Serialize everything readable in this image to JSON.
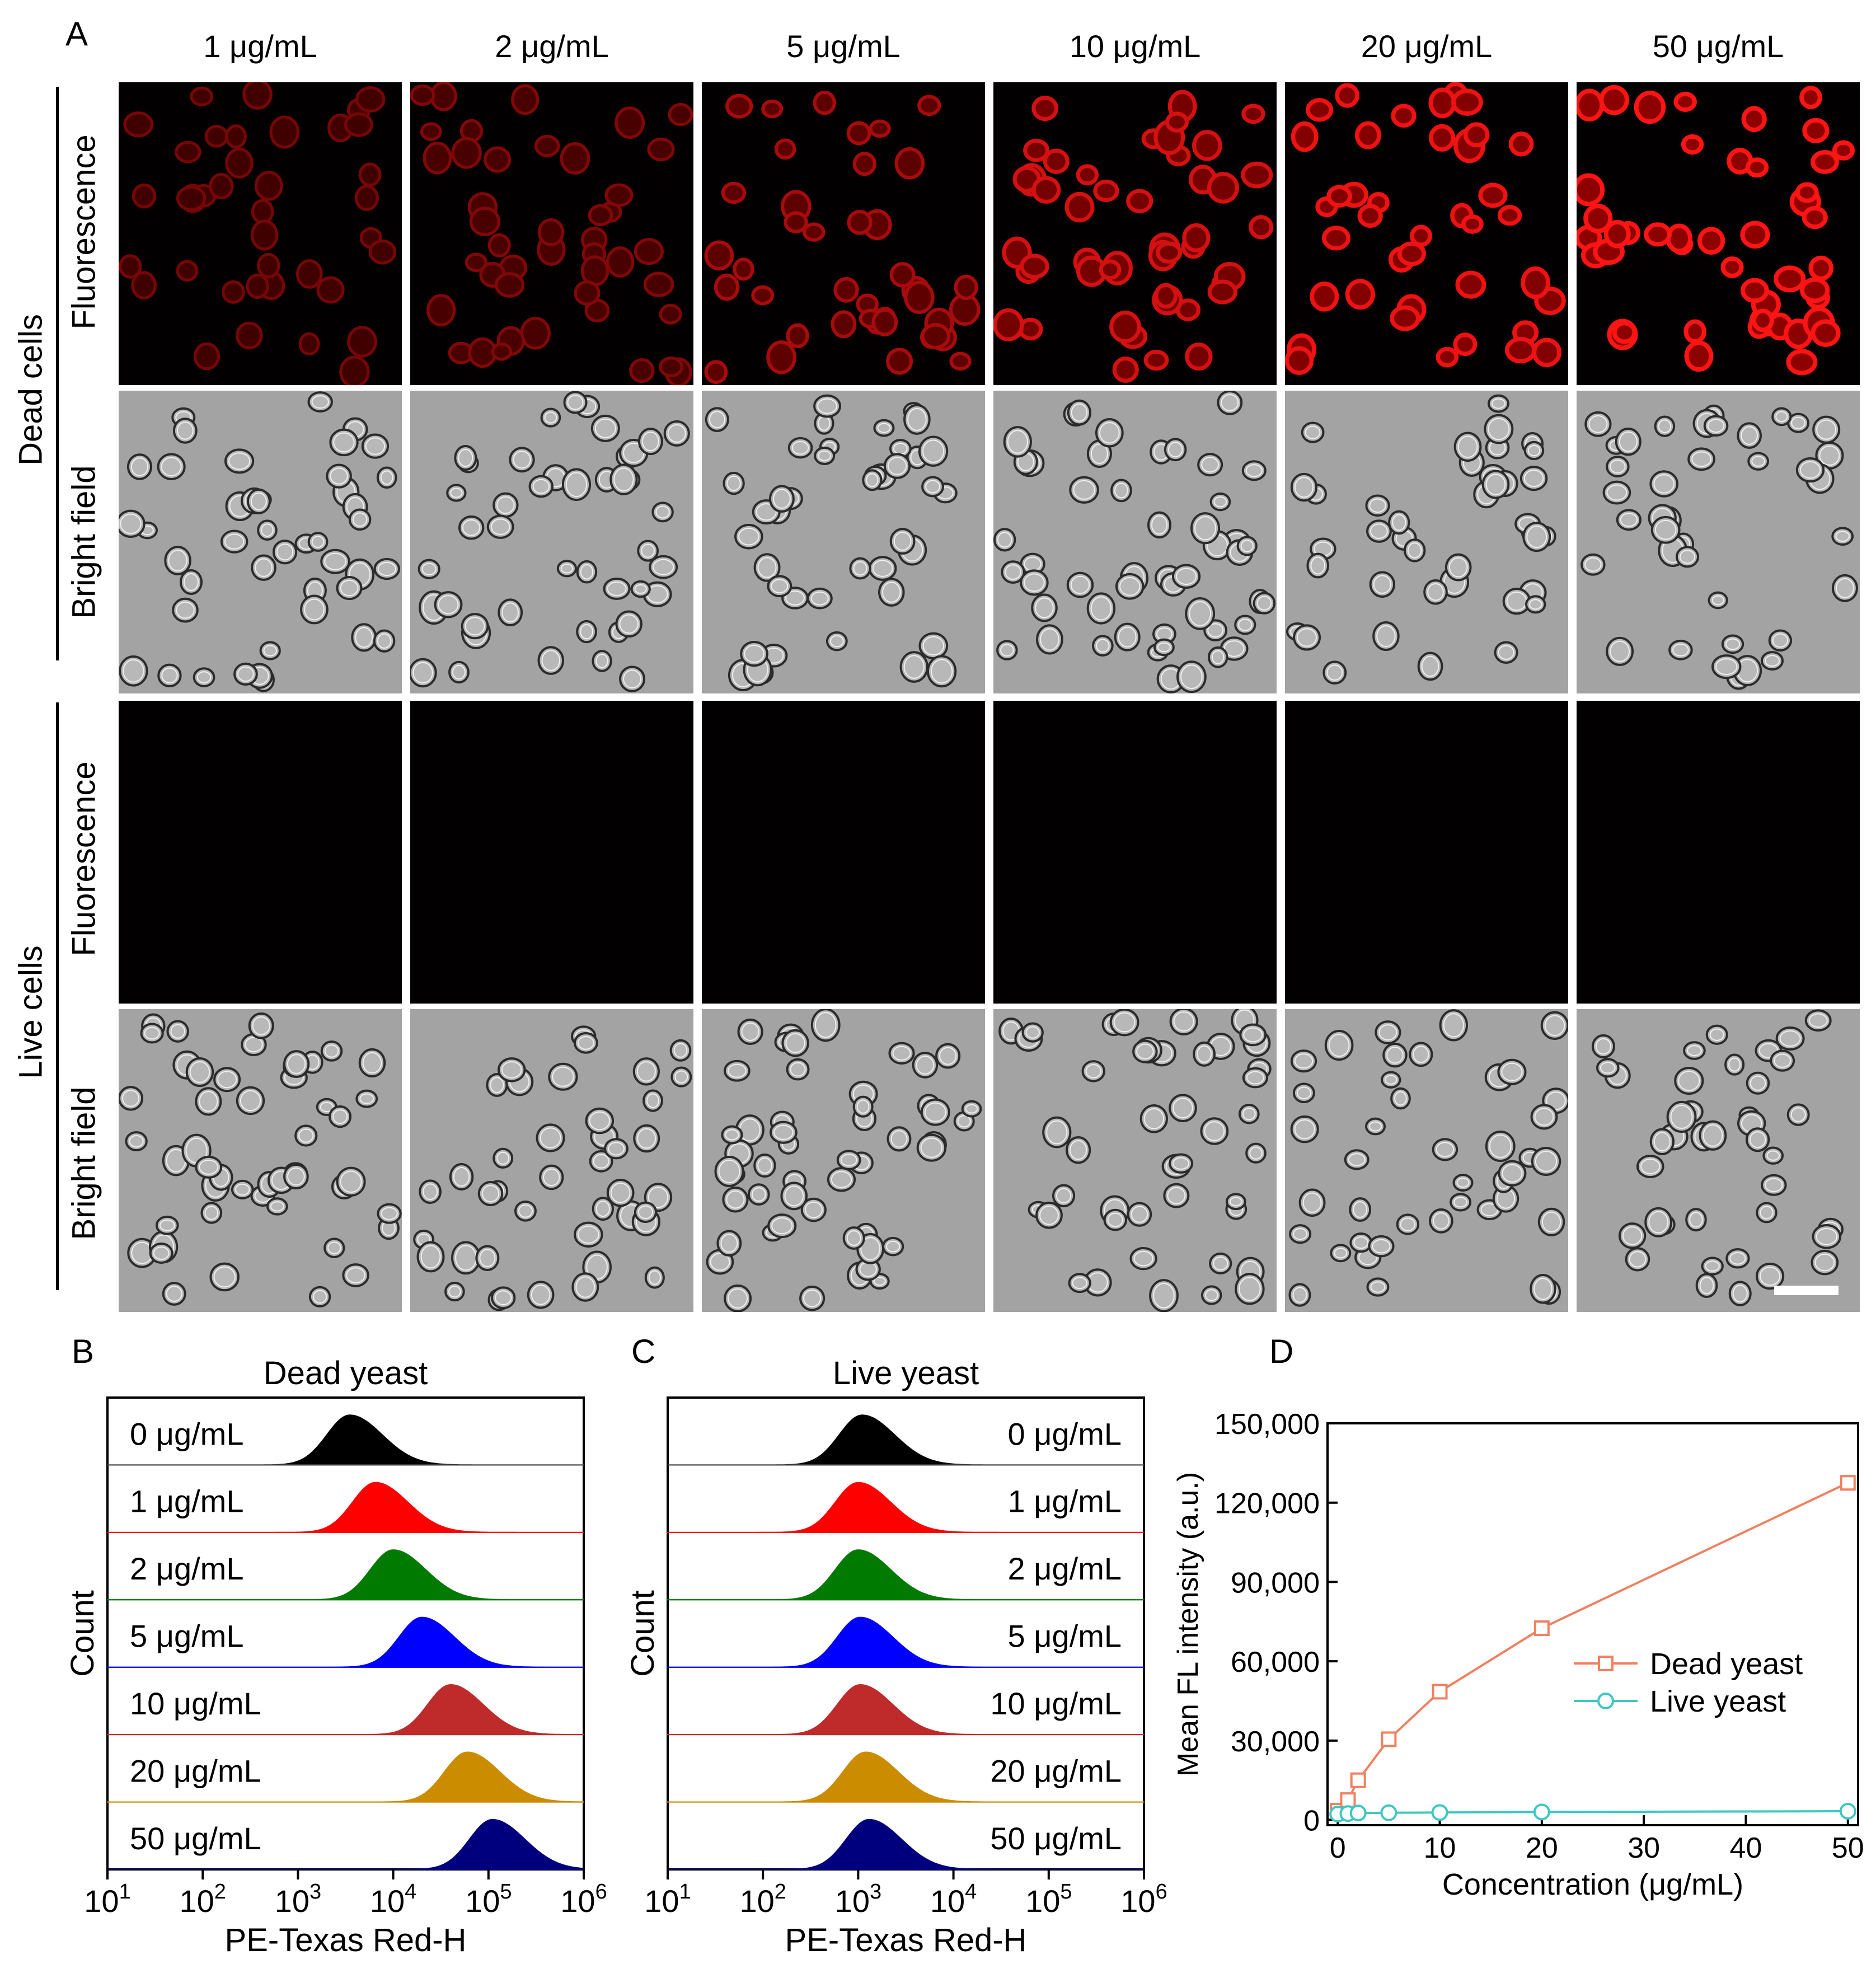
{
  "panel_labels": {
    "A": "A",
    "B": "B",
    "C": "C",
    "D": "D"
  },
  "microscopy": {
    "concentrations": [
      "1 μg/mL",
      "2 μg/mL",
      "5 μg/mL",
      "10 μg/mL",
      "20 μg/mL",
      "50 μg/mL"
    ],
    "groups": [
      {
        "label": "Dead cells",
        "rows": [
          {
            "label": "Fluorescence",
            "kind": "fluorescence",
            "intensity": [
              0.3,
              0.36,
              0.55,
              0.78,
              0.92,
              1.0
            ]
          },
          {
            "label": "Bright field",
            "kind": "bright"
          }
        ]
      },
      {
        "label": "Live cells",
        "rows": [
          {
            "label": "Fluorescence",
            "kind": "fluorescence",
            "intensity": [
              0,
              0,
              0,
              0,
              0,
              0
            ]
          },
          {
            "label": "Bright field",
            "kind": "bright"
          }
        ]
      }
    ]
  },
  "chart_data": [
    {
      "type": "area",
      "panel": "B",
      "title": "Dead yeast",
      "xlabel": "PE-Texas Red-H",
      "ylabel": "Count",
      "x_scale": "log",
      "xlim": [
        10,
        1000000
      ],
      "x_ticks": [
        {
          "base": "10",
          "exp": "1"
        },
        {
          "base": "10",
          "exp": "2"
        },
        {
          "base": "10",
          "exp": "3"
        },
        {
          "base": "10",
          "exp": "4"
        },
        {
          "base": "10",
          "exp": "5"
        },
        {
          "base": "10",
          "exp": "6"
        }
      ],
      "label_side": "left",
      "series": [
        {
          "name": "0 μg/mL",
          "peak": 3500,
          "color": "#000000"
        },
        {
          "name": "1 μg/mL",
          "peak": 6500,
          "color": "#ff0000"
        },
        {
          "name": "2 μg/mL",
          "peak": 10000,
          "color": "#007a00"
        },
        {
          "name": "5 μg/mL",
          "peak": 20000,
          "color": "#0000ff"
        },
        {
          "name": "10 μg/mL",
          "peak": 40000,
          "color": "#bf2b2b"
        },
        {
          "name": "20 μg/mL",
          "peak": 60000,
          "color": "#cc8c00"
        },
        {
          "name": "50 μg/mL",
          "peak": 110000,
          "color": "#00007f"
        }
      ]
    },
    {
      "type": "area",
      "panel": "C",
      "title": "Live yeast",
      "xlabel": "PE-Texas Red-H",
      "ylabel": "Count",
      "x_scale": "log",
      "xlim": [
        10,
        1000000
      ],
      "x_ticks": [
        {
          "base": "10",
          "exp": "1"
        },
        {
          "base": "10",
          "exp": "2"
        },
        {
          "base": "10",
          "exp": "3"
        },
        {
          "base": "10",
          "exp": "4"
        },
        {
          "base": "10",
          "exp": "5"
        },
        {
          "base": "10",
          "exp": "6"
        }
      ],
      "label_side": "right",
      "series": [
        {
          "name": "0 μg/mL",
          "peak": 1100,
          "color": "#000000"
        },
        {
          "name": "1 μg/mL",
          "peak": 1000,
          "color": "#ff0000"
        },
        {
          "name": "2 μg/mL",
          "peak": 1000,
          "color": "#007a00"
        },
        {
          "name": "5 μg/mL",
          "peak": 1050,
          "color": "#0000ff"
        },
        {
          "name": "10 μg/mL",
          "peak": 1050,
          "color": "#bf2b2b"
        },
        {
          "name": "20 μg/mL",
          "peak": 1200,
          "color": "#cc8c00"
        },
        {
          "name": "50 μg/mL",
          "peak": 1300,
          "color": "#00007f"
        }
      ]
    },
    {
      "type": "line",
      "panel": "D",
      "xlabel": "Concentration (μg/mL)",
      "ylabel": "Mean FL intensity (a.u.)",
      "xlim": [
        -1,
        51
      ],
      "ylim": [
        -2000,
        150000
      ],
      "x_ticks": [
        0,
        10,
        20,
        30,
        40,
        50
      ],
      "y_ticks": [
        {
          "v": 0,
          "label": "0"
        },
        {
          "v": 30000,
          "label": "30,000"
        },
        {
          "v": 60000,
          "label": "60,000"
        },
        {
          "v": 90000,
          "label": "90,000"
        },
        {
          "v": 120000,
          "label": "120,000"
        },
        {
          "v": 150000,
          "label": "150,000"
        }
      ],
      "legend_position": "center-right",
      "series": [
        {
          "name": "Dead yeast",
          "marker": "square",
          "color": "#f08060",
          "x": [
            0,
            1,
            2,
            5,
            10,
            20,
            50
          ],
          "y": [
            3500,
            7500,
            15000,
            30500,
            48500,
            72500,
            127500
          ]
        },
        {
          "name": "Live yeast",
          "marker": "circle",
          "color": "#3cc8c0",
          "x": [
            0,
            1,
            2,
            5,
            10,
            20,
            50
          ],
          "y": [
            2200,
            2400,
            2600,
            2700,
            2800,
            3000,
            3300
          ]
        }
      ]
    }
  ]
}
